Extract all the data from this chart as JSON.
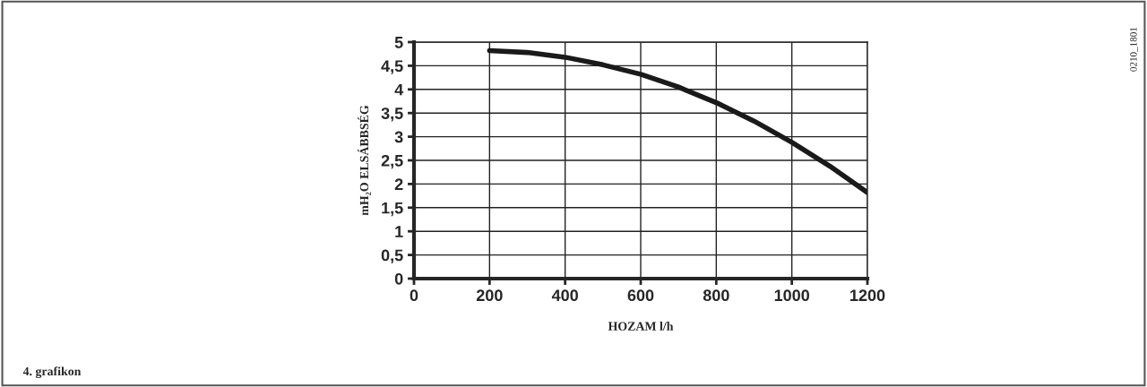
{
  "chart_data": {
    "type": "line",
    "xlabel": "HOZAM l/h",
    "ylabel": "mH₂O ELSÁBBSÉG",
    "x": [
      200,
      300,
      400,
      500,
      600,
      700,
      800,
      900,
      1000,
      1100,
      1200
    ],
    "series": [
      {
        "color": "#1a1a1a",
        "values": [
          4.82,
          4.78,
          4.68,
          4.52,
          4.32,
          4.05,
          3.72,
          3.33,
          2.88,
          2.38,
          1.82
        ]
      }
    ],
    "xlim": [
      0,
      1200
    ],
    "xticks": [
      0,
      200,
      400,
      600,
      800,
      1000,
      1200
    ],
    "ylim": [
      0,
      5
    ],
    "yticks": [
      0,
      {
        "value": 0.5,
        "label": "0,5"
      },
      1,
      {
        "value": 1.5,
        "label": "1,5"
      },
      2,
      {
        "value": 2.5,
        "label": "2,5"
      },
      3,
      {
        "value": 3.5,
        "label": "3,5"
      },
      4,
      {
        "value": 4.5,
        "label": "4,5"
      },
      5
    ],
    "grid": true,
    "marker": "none",
    "line_style": "solid",
    "annotations": [
      "4. grafikon",
      "0210_1801"
    ]
  }
}
